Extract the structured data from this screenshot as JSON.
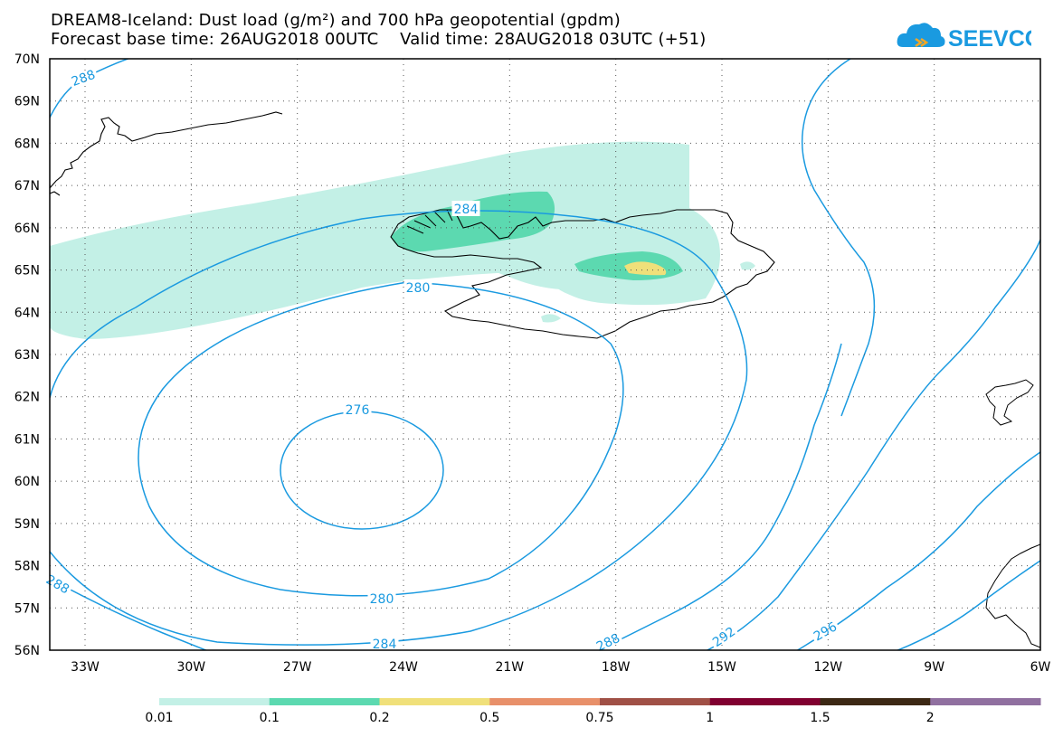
{
  "header": {
    "title_line1": "DREAM8-Iceland: Dust load (g/m²) and 700 hPa geopotential (gpdm)",
    "title_line2": "Forecast base time: 26AUG2018 00UTC    Valid time: 28AUG2018 03UTC (+51)",
    "logo_text": "SEEVCCC",
    "logo_icon": "cloud-icon"
  },
  "map": {
    "projection": "lat-lon",
    "lat_labels": [
      "70N",
      "69N",
      "68N",
      "67N",
      "66N",
      "65N",
      "64N",
      "63N",
      "62N",
      "61N",
      "60N",
      "59N",
      "58N",
      "57N",
      "56N"
    ],
    "lon_labels": [
      "33W",
      "30W",
      "27W",
      "24W",
      "21W",
      "18W",
      "15W",
      "12W",
      "9W",
      "6W"
    ],
    "grid": "dotted",
    "contour_color": "#1a9ae0",
    "contour_labels": [
      "288",
      "284",
      "280",
      "276",
      "280",
      "284",
      "288",
      "288",
      "292",
      "296"
    ],
    "coastline_regions": [
      "Greenland",
      "Iceland",
      "Faroe Islands",
      "Scotland"
    ]
  },
  "colorbar": {
    "colors": [
      "#c3f0e6",
      "#5cd9b0",
      "#f0e07a",
      "#e8906a",
      "#a05046",
      "#800030",
      "#3c2814",
      "#9070a0"
    ],
    "labels": [
      "0.01",
      "0.1",
      "0.2",
      "0.5",
      "0.75",
      "1",
      "1.5",
      "2"
    ]
  }
}
